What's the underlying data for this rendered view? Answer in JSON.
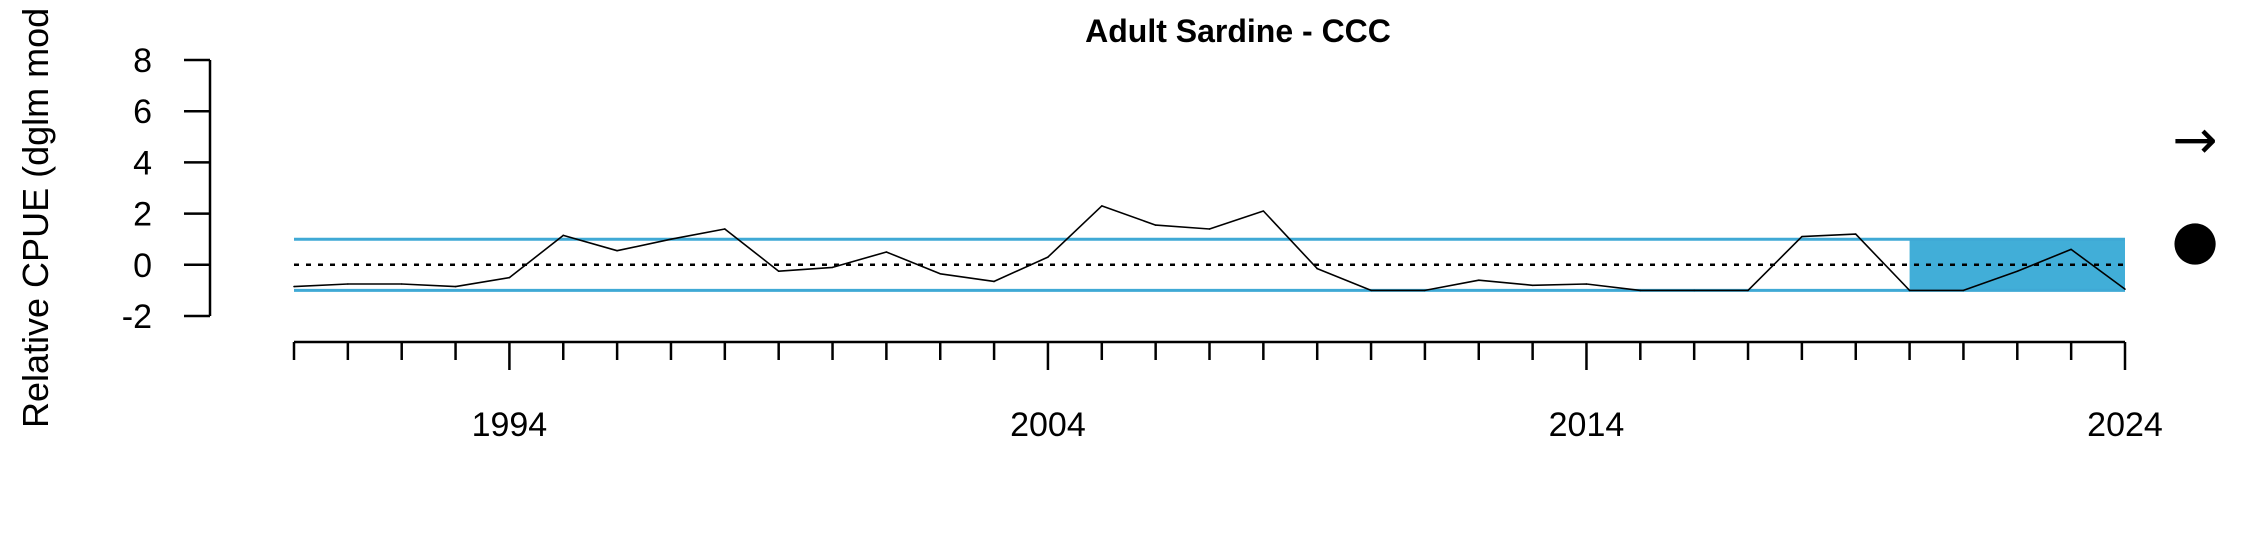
{
  "chart_data": {
    "type": "line",
    "title": "Adult Sardine - CCC",
    "ylabel": "Relative CPUE (dglm mod",
    "xlabel": "",
    "xlim": [
      1990,
      2024
    ],
    "ylim": [
      -2,
      8
    ],
    "y_ticks": [
      8,
      6,
      4,
      2,
      0,
      -2
    ],
    "x_major_ticks": [
      1994,
      2004,
      2014,
      2024
    ],
    "x_minor_ticks": [
      1990,
      1991,
      1992,
      1993,
      1994,
      1995,
      1996,
      1997,
      1998,
      1999,
      2000,
      2001,
      2002,
      2003,
      2004,
      2005,
      2006,
      2007,
      2008,
      2009,
      2010,
      2011,
      2012,
      2013,
      2014,
      2015,
      2016,
      2017,
      2018,
      2019,
      2020,
      2021,
      2022,
      2023,
      2024
    ],
    "reference_lines": {
      "mean": 0,
      "upper_sd": 1,
      "lower_sd": -1
    },
    "highlight_range": {
      "x": [
        2020,
        2024
      ],
      "y": [
        -1,
        1
      ]
    },
    "series": [
      {
        "x": [
          1990,
          1991,
          1992,
          1993,
          1994,
          1995,
          1996,
          1997,
          1998,
          1999,
          2000,
          2001,
          2002,
          2003,
          2004,
          2005,
          2006,
          2007,
          2008,
          2009,
          2010,
          2011,
          2012,
          2013,
          2014,
          2015,
          2016,
          2017,
          2018,
          2019,
          2020,
          2021,
          2022,
          2023,
          2024
        ],
        "y": [
          -0.85,
          -0.75,
          -0.75,
          -0.85,
          -0.5,
          1.15,
          0.55,
          1.0,
          1.4,
          -0.25,
          -0.1,
          0.5,
          -0.35,
          -0.65,
          0.3,
          2.3,
          1.55,
          1.4,
          2.1,
          -0.15,
          -1.0,
          -1.0,
          -0.6,
          -0.8,
          -0.75,
          -1.0,
          -1.0,
          -1.0,
          1.1,
          1.2,
          -1.0,
          -1.0,
          -0.25,
          0.6,
          -0.95
        ]
      }
    ],
    "colors": {
      "line": "#000000",
      "sd_lines": "#3fa9d5",
      "highlight": "#41aed8",
      "mean_line": "#000000"
    },
    "indicators": {
      "trend": "→",
      "mean_status": "●"
    },
    "grid": false,
    "legend": "none"
  }
}
